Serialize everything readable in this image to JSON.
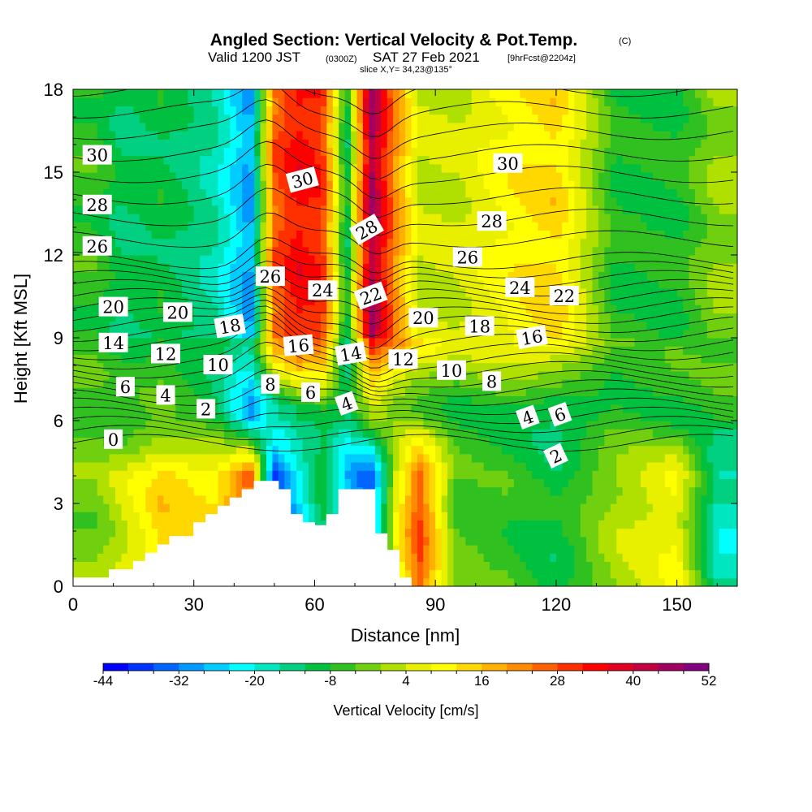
{
  "title": {
    "main": "Angled Section: Vertical Velocity & Pot.Temp.",
    "unit": "(C)",
    "valid_prefix": "Valid 1200 JST",
    "valid_utc": "(0300Z)",
    "valid_date": "SAT 27 Feb 2021",
    "forecast": "[9hrFcst@2204z]",
    "slice": "slice X,Y= 34,23@135°"
  },
  "chart_data": {
    "type": "heatmap",
    "xlabel": "Distance [nm]",
    "ylabel": "Height [Kft MSL]",
    "xlim": [
      0,
      165
    ],
    "ylim": [
      0,
      18
    ],
    "x_ticks": [
      0,
      30,
      60,
      90,
      120,
      150
    ],
    "y_ticks": [
      0,
      3,
      6,
      9,
      12,
      15,
      18
    ],
    "grid": false,
    "colorbar": {
      "title": "Vertical Velocity [cm/s]",
      "placement": "bottom",
      "tick_labels": [
        "-44",
        "-32",
        "-20",
        "-8",
        "4",
        "16",
        "28",
        "40",
        "52"
      ],
      "min": -44,
      "max": 52,
      "step": 4,
      "colors": [
        "#0000ff",
        "#0033ff",
        "#0066ff",
        "#0099ff",
        "#00ccff",
        "#00ffff",
        "#00e6c0",
        "#00d080",
        "#00c040",
        "#30c020",
        "#70d010",
        "#b0e000",
        "#e8f000",
        "#ffff00",
        "#ffd800",
        "#ffb000",
        "#ff8c00",
        "#ff6000",
        "#ff3000",
        "#ff0000",
        "#e00020",
        "#c00040",
        "#a00060",
        "#800080"
      ]
    },
    "velocity_columns": [
      {
        "x": 5,
        "top": -6,
        "mid": -4,
        "low": -2
      },
      {
        "x": 12,
        "top": -12,
        "mid": -8,
        "low": 4
      },
      {
        "x": 22,
        "top": -10,
        "mid": -6,
        "low": 14
      },
      {
        "x": 35,
        "top": -16,
        "mid": -12,
        "low": 12
      },
      {
        "x": 44,
        "top": -30,
        "mid": -34,
        "low": 28
      },
      {
        "x": 50,
        "top": 26,
        "mid": -12,
        "low": -40
      },
      {
        "x": 56,
        "top": 34,
        "mid": -8,
        "low": -24
      },
      {
        "x": 62,
        "top": 30,
        "mid": -8,
        "low": -10
      },
      {
        "x": 68,
        "top": -12,
        "mid": -12,
        "low": -28
      },
      {
        "x": 74,
        "top": 46,
        "mid": 4,
        "low": -36
      },
      {
        "x": 80,
        "top": 22,
        "mid": -4,
        "low": 6
      },
      {
        "x": 86,
        "top": 4,
        "mid": -8,
        "low": 28
      },
      {
        "x": 95,
        "top": 4,
        "mid": -8,
        "low": -4
      },
      {
        "x": 108,
        "top": 10,
        "mid": -10,
        "low": -6
      },
      {
        "x": 120,
        "top": 14,
        "mid": -14,
        "low": -10
      },
      {
        "x": 135,
        "top": -8,
        "mid": -8,
        "low": 2
      },
      {
        "x": 150,
        "top": -8,
        "mid": -10,
        "low": 8
      },
      {
        "x": 160,
        "top": 0,
        "mid": -6,
        "low": -18
      }
    ],
    "terrain": {
      "x": [
        0,
        9,
        15,
        18,
        21,
        24,
        30,
        33,
        36,
        39,
        42,
        45,
        51,
        54,
        57,
        60,
        63,
        66,
        72,
        75,
        78,
        81
      ],
      "height": [
        0.3,
        0.6,
        0.9,
        1.2,
        1.5,
        1.8,
        2.3,
        2.6,
        2.9,
        3.2,
        3.5,
        3.8,
        3.5,
        2.6,
        2.3,
        2.2,
        2.6,
        3.5,
        3.5,
        1.9,
        1.3,
        0.3
      ]
    },
    "contour_labels": [
      {
        "text": "30",
        "x": 6,
        "y": 15.6,
        "angle": 0
      },
      {
        "text": "28",
        "x": 6,
        "y": 13.8,
        "angle": 0
      },
      {
        "text": "26",
        "x": 6,
        "y": 12.3,
        "angle": 0
      },
      {
        "text": "20",
        "x": 10,
        "y": 10.1,
        "angle": 0
      },
      {
        "text": "14",
        "x": 10,
        "y": 8.8,
        "angle": 0
      },
      {
        "text": "6",
        "x": 13,
        "y": 7.2,
        "angle": 0
      },
      {
        "text": "0",
        "x": 10,
        "y": 5.3,
        "angle": 0
      },
      {
        "text": "20",
        "x": 26,
        "y": 9.9,
        "angle": 0
      },
      {
        "text": "12",
        "x": 23,
        "y": 8.4,
        "angle": 0
      },
      {
        "text": "4",
        "x": 23,
        "y": 6.9,
        "angle": 0
      },
      {
        "text": "18",
        "x": 39,
        "y": 9.4,
        "angle": -10
      },
      {
        "text": "10",
        "x": 36,
        "y": 8.0,
        "angle": 0
      },
      {
        "text": "2",
        "x": 33,
        "y": 6.4,
        "angle": 0
      },
      {
        "text": "30",
        "x": 57,
        "y": 14.7,
        "angle": -15
      },
      {
        "text": "26",
        "x": 49,
        "y": 11.2,
        "angle": 0
      },
      {
        "text": "24",
        "x": 62,
        "y": 10.7,
        "angle": 0
      },
      {
        "text": "16",
        "x": 56,
        "y": 8.7,
        "angle": -5
      },
      {
        "text": "8",
        "x": 49,
        "y": 7.3,
        "angle": 0
      },
      {
        "text": "6",
        "x": 59,
        "y": 7.0,
        "angle": 0
      },
      {
        "text": "28",
        "x": 73,
        "y": 12.9,
        "angle": -30
      },
      {
        "text": "22",
        "x": 74,
        "y": 10.5,
        "angle": -20
      },
      {
        "text": "14",
        "x": 69,
        "y": 8.4,
        "angle": -10
      },
      {
        "text": "4",
        "x": 68,
        "y": 6.6,
        "angle": -20
      },
      {
        "text": "20",
        "x": 87,
        "y": 9.7,
        "angle": 0
      },
      {
        "text": "12",
        "x": 82,
        "y": 8.2,
        "angle": 0
      },
      {
        "text": "30",
        "x": 108,
        "y": 15.3,
        "angle": 0
      },
      {
        "text": "28",
        "x": 104,
        "y": 13.2,
        "angle": 0
      },
      {
        "text": "26",
        "x": 98,
        "y": 11.9,
        "angle": 0
      },
      {
        "text": "24",
        "x": 111,
        "y": 10.8,
        "angle": 0
      },
      {
        "text": "22",
        "x": 122,
        "y": 10.5,
        "angle": 0
      },
      {
        "text": "18",
        "x": 101,
        "y": 9.4,
        "angle": 0
      },
      {
        "text": "16",
        "x": 114,
        "y": 9.0,
        "angle": -10
      },
      {
        "text": "10",
        "x": 94,
        "y": 7.8,
        "angle": 0
      },
      {
        "text": "8",
        "x": 104,
        "y": 7.4,
        "angle": 0
      },
      {
        "text": "4",
        "x": 113,
        "y": 6.1,
        "angle": -20
      },
      {
        "text": "6",
        "x": 121,
        "y": 6.2,
        "angle": -20
      },
      {
        "text": "2",
        "x": 120,
        "y": 4.7,
        "angle": -25
      }
    ]
  }
}
